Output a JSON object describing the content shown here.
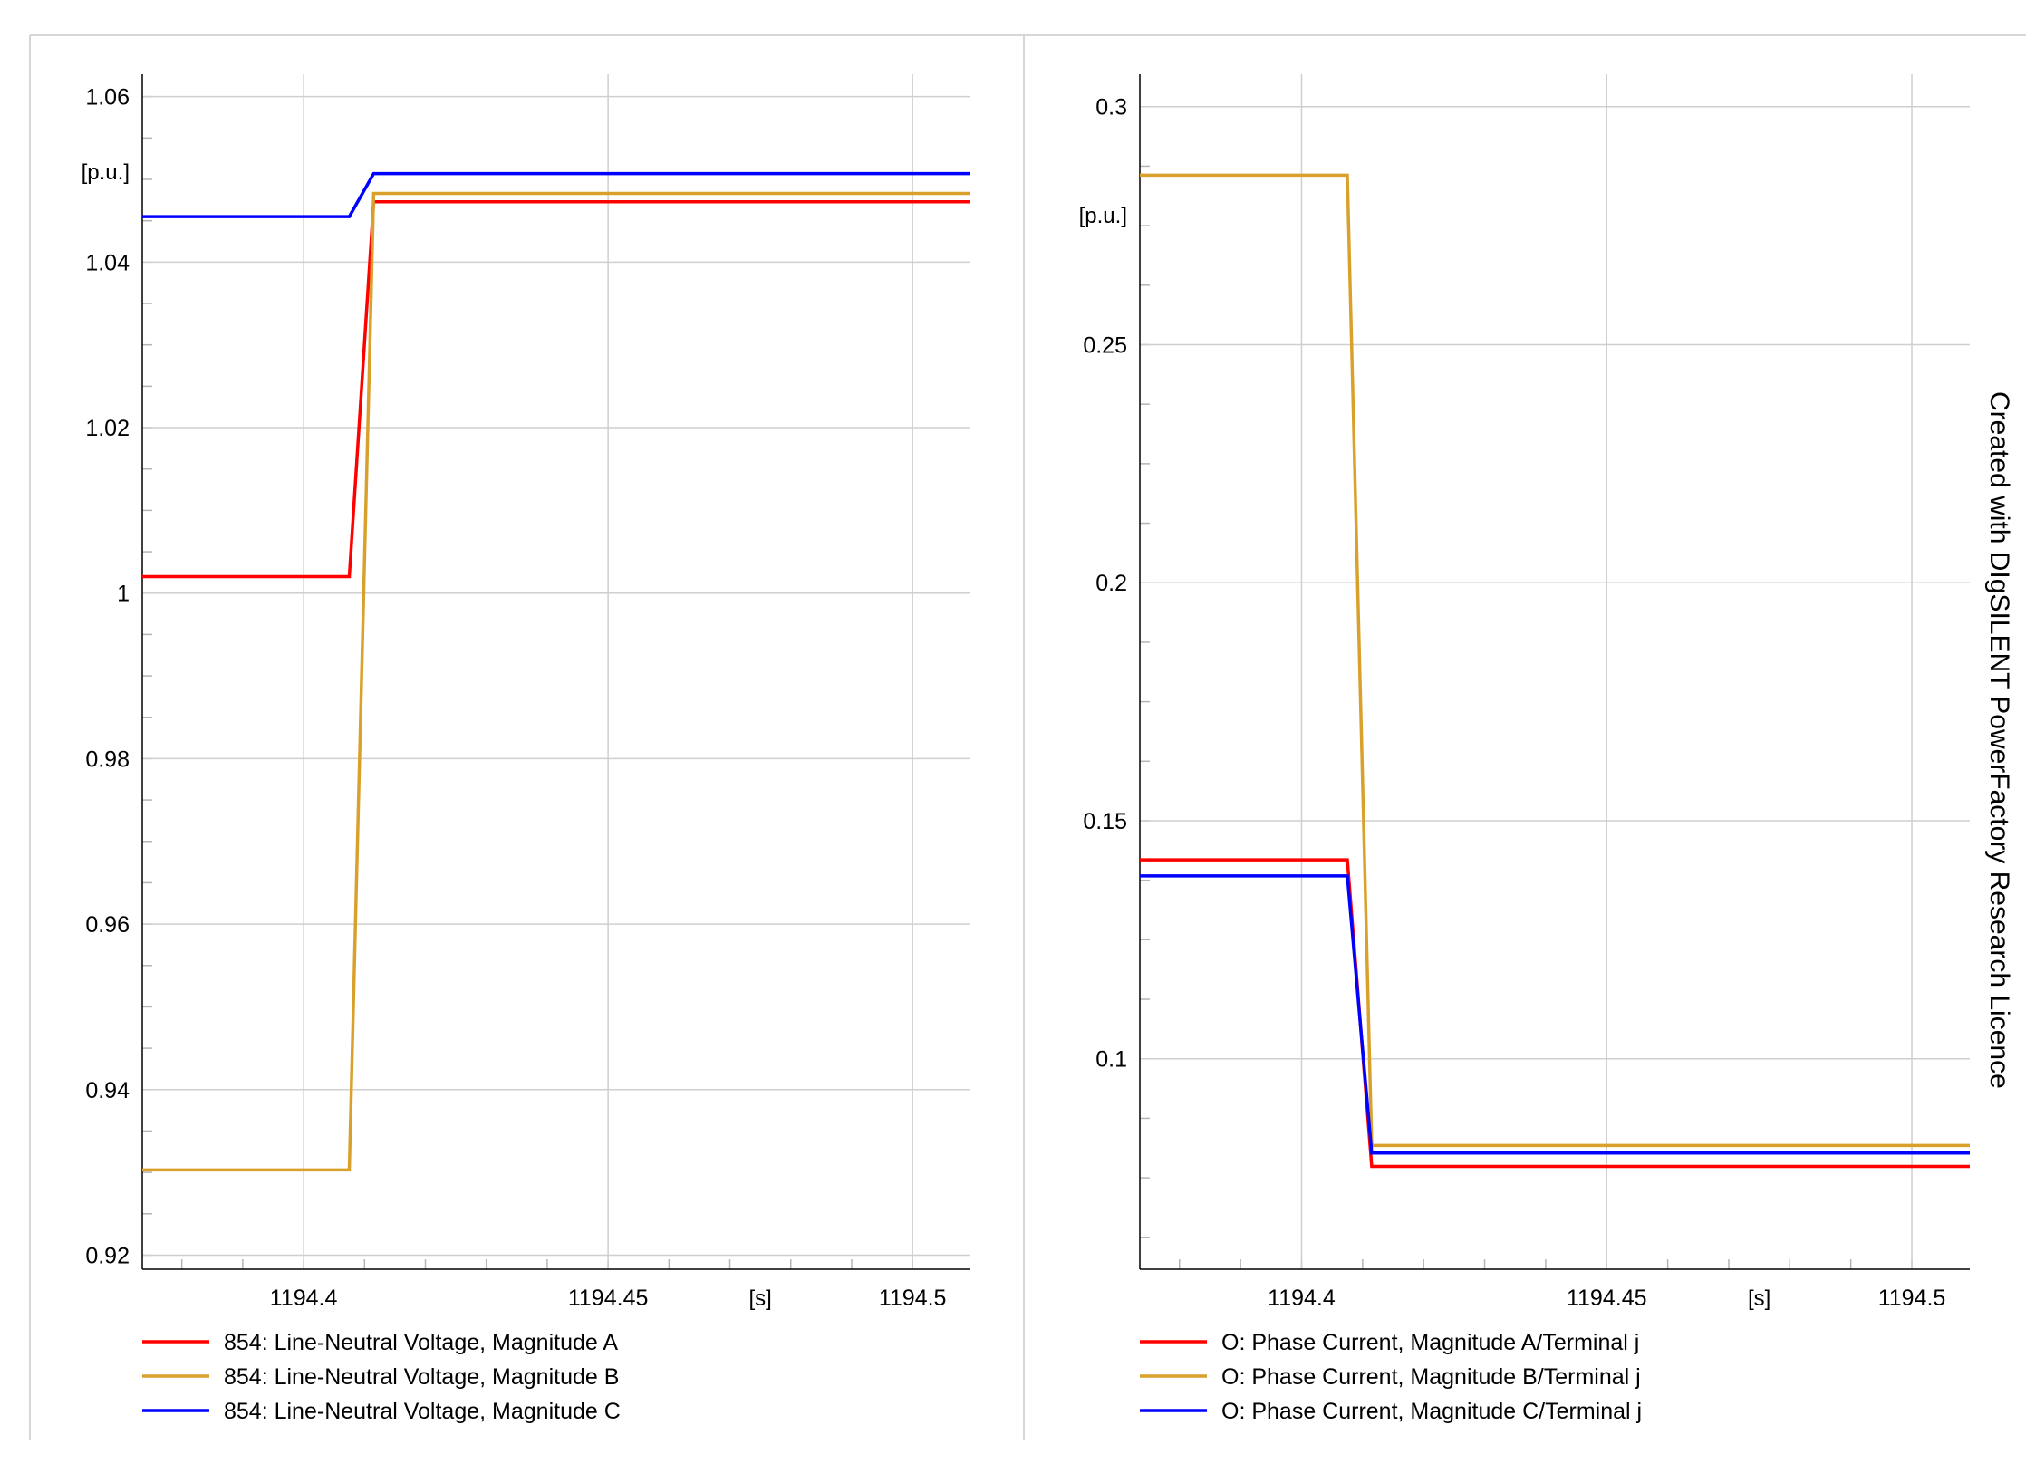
{
  "watermark": "Created with DIgSILENT PowerFactory Research Licence",
  "chart_data": [
    {
      "type": "line",
      "panel": "left",
      "ylabel": "[p.u.]",
      "xlabel": "[s]",
      "xlim": [
        1194.3735,
        1194.5095
      ],
      "ylim": [
        0.9183,
        1.0627
      ],
      "x_ticks": [
        1194.4,
        1194.45,
        1194.5
      ],
      "x_tick_labels": [
        "1194.4",
        "1194.45",
        "1194.5"
      ],
      "y_ticks": [
        0.92,
        0.94,
        0.96,
        0.98,
        1,
        1.02,
        1.04,
        1.06
      ],
      "y_tick_labels": [
        "0.92",
        "0.94",
        "0.96",
        "0.98",
        "1",
        "1.02",
        "1.04",
        "1.06"
      ],
      "grid": true,
      "legend_position": "bottom",
      "series": [
        {
          "name": "854: Line-Neutral Voltage, Magnitude A",
          "color": "#ff0000",
          "x": [
            1194.3735,
            1194.4075,
            1194.4115,
            1194.5095
          ],
          "y": [
            1.002,
            1.002,
            1.0473,
            1.0473
          ]
        },
        {
          "name": "854: Line-Neutral Voltage, Magnitude B",
          "color": "#d9a12b",
          "x": [
            1194.3735,
            1194.4075,
            1194.4115,
            1194.5095
          ],
          "y": [
            0.9303,
            0.9303,
            1.0483,
            1.0483
          ]
        },
        {
          "name": "854: Line-Neutral Voltage, Magnitude C",
          "color": "#0000ff",
          "x": [
            1194.3735,
            1194.4075,
            1194.4115,
            1194.5095
          ],
          "y": [
            1.0455,
            1.0455,
            1.0507,
            1.0507
          ]
        }
      ]
    },
    {
      "type": "line",
      "panel": "right",
      "ylabel": "[p.u.]",
      "xlabel": "[s]",
      "xlim": [
        1194.3735,
        1194.5095
      ],
      "ylim": [
        0.0558,
        0.3068
      ],
      "x_ticks": [
        1194.4,
        1194.45,
        1194.5
      ],
      "x_tick_labels": [
        "1194.4",
        "1194.45",
        "1194.5"
      ],
      "y_ticks": [
        0.1,
        0.15,
        0.2,
        0.25,
        0.3
      ],
      "y_tick_labels": [
        "0.1",
        "0.15",
        "0.2",
        "0.25",
        "0.3"
      ],
      "grid": true,
      "legend_position": "bottom",
      "series": [
        {
          "name": "O: Phase Current, Magnitude A/Terminal j",
          "color": "#ff0000",
          "x": [
            1194.3735,
            1194.4075,
            1194.4115,
            1194.5095
          ],
          "y": [
            0.1418,
            0.1418,
            0.0774,
            0.0774
          ]
        },
        {
          "name": "O: Phase Current, Magnitude B/Terminal j",
          "color": "#d9a12b",
          "x": [
            1194.3735,
            1194.4075,
            1194.4115,
            1194.5095
          ],
          "y": [
            0.2856,
            0.2856,
            0.0818,
            0.0818
          ]
        },
        {
          "name": "O: Phase Current, Magnitude C/Terminal j",
          "color": "#0000ff",
          "x": [
            1194.3735,
            1194.4075,
            1194.4115,
            1194.5095
          ],
          "y": [
            0.1384,
            0.1384,
            0.0802,
            0.0802
          ]
        }
      ]
    }
  ]
}
